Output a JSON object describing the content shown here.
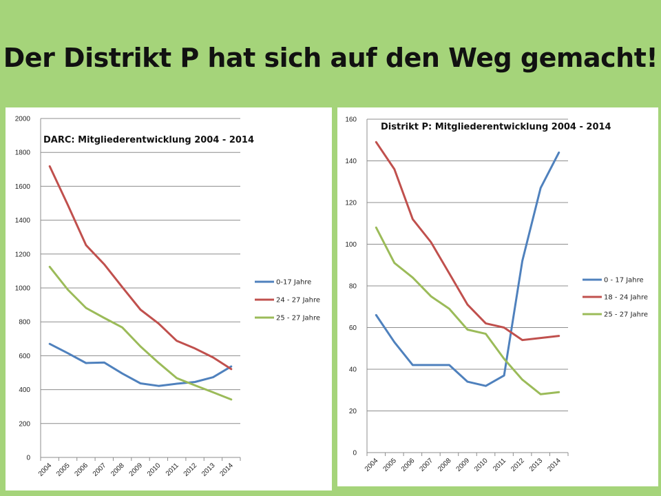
{
  "slide": {
    "title": "Der Distrikt P hat sich auf den Weg gemacht!"
  },
  "chart_data": [
    {
      "type": "line",
      "title": "DARC: Mitgliederentwicklung 2004 - 2014",
      "xlabel": "",
      "ylabel": "",
      "categories": [
        "2004",
        "2005",
        "2006",
        "2007",
        "2008",
        "2009",
        "2010",
        "2011",
        "2012",
        "2013",
        "2014"
      ],
      "ylim": [
        0,
        2000
      ],
      "yticks": [
        0,
        200,
        400,
        600,
        800,
        1000,
        1200,
        1400,
        1600,
        1800,
        2000
      ],
      "grid": true,
      "legend": "right",
      "series": [
        {
          "name": "0-17 Jahre",
          "color": "#4f81bd",
          "values": [
            670,
            615,
            557,
            560,
            495,
            437,
            422,
            435,
            445,
            473,
            537
          ]
        },
        {
          "name": "24 - 27 Jahre",
          "color": "#c0504d",
          "values": [
            1718,
            1490,
            1253,
            1140,
            1005,
            872,
            790,
            688,
            643,
            590,
            521
          ]
        },
        {
          "name": "25 - 27 Jahre",
          "color": "#9bbb59",
          "values": [
            1125,
            990,
            882,
            823,
            767,
            655,
            558,
            468,
            425,
            384,
            342
          ]
        }
      ]
    },
    {
      "type": "line",
      "title": "Distrikt P: Mitgliederentwicklung  2004 - 2014",
      "xlabel": "",
      "ylabel": "",
      "categories": [
        "2004",
        "2005",
        "2006",
        "2007",
        "2008",
        "2009",
        "2010",
        "2011",
        "2012",
        "2013",
        "2014"
      ],
      "ylim": [
        0,
        160
      ],
      "yticks": [
        0,
        20,
        40,
        60,
        80,
        100,
        120,
        140,
        160
      ],
      "grid": true,
      "legend": "right",
      "series": [
        {
          "name": "0 - 17 Jahre",
          "color": "#4f81bd",
          "values": [
            66,
            53,
            42,
            42,
            42,
            34,
            32,
            37,
            92,
            127,
            144
          ]
        },
        {
          "name": "18 - 24  Jahre",
          "color": "#c0504d",
          "values": [
            149,
            136,
            112,
            101,
            86,
            71,
            62,
            60,
            54,
            55,
            56
          ]
        },
        {
          "name": "25 - 27 Jahre",
          "color": "#9bbb59",
          "values": [
            108,
            91,
            84,
            75,
            69,
            59,
            57,
            45,
            35,
            28,
            29
          ]
        }
      ]
    }
  ]
}
